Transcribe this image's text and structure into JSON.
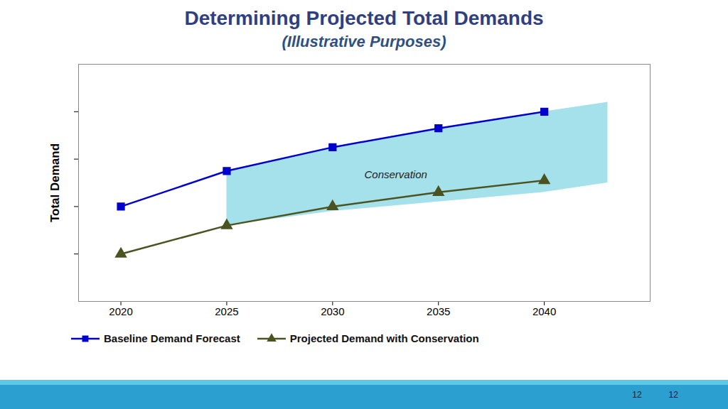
{
  "chart_data": {
    "type": "line",
    "title": "Determining  Projected Total Demands",
    "subtitle": "(Illustrative Purposes)",
    "y_label": "Total Demand",
    "x": [
      2020,
      2025,
      2030,
      2035,
      2040
    ],
    "series": [
      {
        "name": "Baseline Demand Forecast",
        "color": "#0000CC",
        "marker": "square",
        "line_style": "solid",
        "values": [
          40,
          55,
          65,
          73,
          80
        ]
      },
      {
        "name": "Projected Demand with Conservation",
        "color": "#4B5320",
        "marker": "triangle",
        "line_style": "solid",
        "values": [
          20,
          32,
          40,
          46,
          51
        ]
      }
    ],
    "band": {
      "x": [
        2025,
        2030,
        2035,
        2040,
        2043
      ],
      "lower": [
        32,
        38,
        42,
        46,
        50
      ],
      "upper": [
        55,
        65,
        73,
        80,
        84
      ],
      "color": "#5BC8D8"
    },
    "annotations": [
      {
        "text": "Conservation",
        "x": 2031.5,
        "y": 52
      },
      {
        "text": "12"
      },
      {
        "text": "12"
      }
    ],
    "xlim": [
      2018,
      2045
    ],
    "xticks": [
      2020,
      2025,
      2030,
      2035,
      2040
    ],
    "ylim": [
      0,
      100
    ],
    "yticks": [
      20,
      40,
      60,
      80
    ],
    "tick_labels": "x",
    "grid": false,
    "legend": "lower left"
  }
}
